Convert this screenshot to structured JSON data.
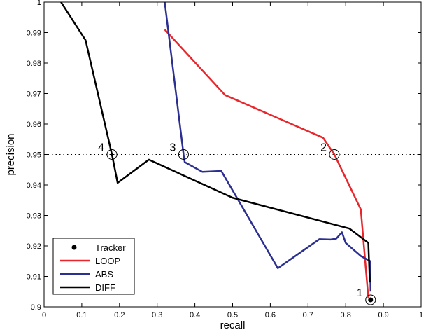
{
  "chart_data": {
    "type": "line",
    "xlabel": "recall",
    "ylabel": "precision",
    "xlim": [
      0,
      1
    ],
    "ylim": [
      0.9,
      1
    ],
    "xticks": [
      "0",
      "0.1",
      "0.2",
      "0.3",
      "0.4",
      "0.5",
      "0.6",
      "0.7",
      "0.8",
      "0.9",
      "1"
    ],
    "yticks": [
      "0.9",
      "0.91",
      "0.92",
      "0.93",
      "0.94",
      "0.95",
      "0.96",
      "0.97",
      "0.98",
      "0.99",
      "1"
    ],
    "grid": false,
    "legend_position": "bottom-left",
    "reference_line": {
      "y": 0.95,
      "style": "dotted"
    },
    "tracker": {
      "name": "Tracker",
      "x": 0.866,
      "y": 0.9023,
      "color": "#000000"
    },
    "series": [
      {
        "name": "LOOP",
        "color": "#e8262b",
        "x": [
          0.32,
          0.48,
          0.74,
          0.77,
          0.84,
          0.86
        ],
        "y": [
          0.991,
          0.9695,
          0.9555,
          0.95,
          0.932,
          0.903
        ]
      },
      {
        "name": "ABS",
        "color": "#2b2f91",
        "x": [
          0.32,
          0.37,
          0.373,
          0.42,
          0.47,
          0.62,
          0.73,
          0.76,
          0.775,
          0.79,
          0.8,
          0.84,
          0.865,
          0.866
        ],
        "y": [
          1.0,
          0.95,
          0.9475,
          0.9443,
          0.9446,
          0.9127,
          0.9222,
          0.9221,
          0.9224,
          0.9245,
          0.921,
          0.9167,
          0.915,
          0.905
        ]
      },
      {
        "name": "DIFF",
        "color": "#000000",
        "x": [
          0.045,
          0.11,
          0.18,
          0.195,
          0.278,
          0.5,
          0.81,
          0.86,
          0.864
        ],
        "y": [
          1.0,
          0.9875,
          0.95,
          0.9407,
          0.9483,
          0.9358,
          0.9257,
          0.921,
          0.908
        ]
      }
    ],
    "annotations": [
      {
        "label": "1",
        "x": 0.866,
        "y": 0.9023
      },
      {
        "label": "2",
        "x": 0.77,
        "y": 0.95
      },
      {
        "label": "3",
        "x": 0.37,
        "y": 0.95
      },
      {
        "label": "4",
        "x": 0.18,
        "y": 0.95
      }
    ]
  }
}
